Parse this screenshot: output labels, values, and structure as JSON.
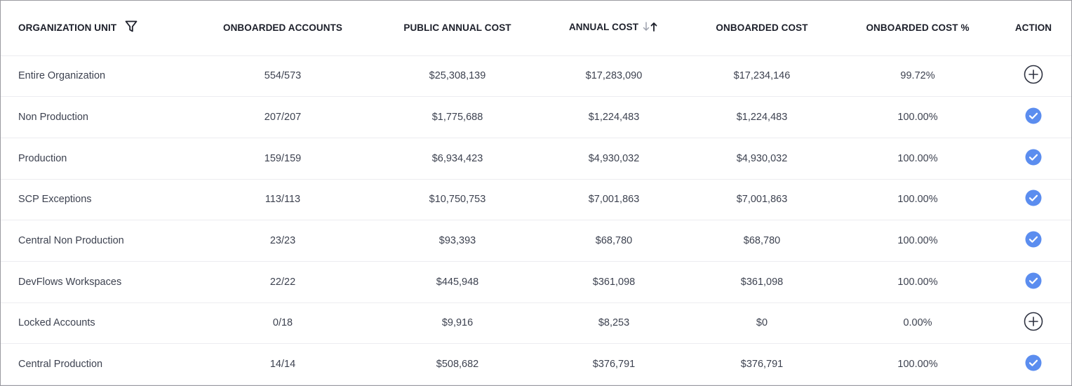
{
  "colors": {
    "check_fill": "#5b8def",
    "plus_stroke": "#2e3240",
    "header_text": "#1c1f2a",
    "cell_text": "#3d4250",
    "row_border": "#ececf0"
  },
  "table": {
    "headers": {
      "org_unit": "ORGANIZATION UNIT",
      "onboarded_accounts": "ONBOARDED ACCOUNTS",
      "public_annual_cost": "PUBLIC ANNUAL COST",
      "annual_cost": "ANNUAL COST",
      "onboarded_cost": "ONBOARDED COST",
      "onboarded_cost_pct": "ONBOARDED COST %",
      "action": "ACTION"
    },
    "header_icons": {
      "filter": "filter-icon",
      "sort": "sort-arrows-icon"
    },
    "rows": [
      {
        "org_unit": "Entire Organization",
        "onboarded_accounts": "554/573",
        "public_annual_cost": "$25,308,139",
        "annual_cost": "$17,283,090",
        "onboarded_cost": "$17,234,146",
        "onboarded_cost_pct": "99.72%",
        "action_icon": "plus-circle-icon"
      },
      {
        "org_unit": "Non Production",
        "onboarded_accounts": "207/207",
        "public_annual_cost": "$1,775,688",
        "annual_cost": "$1,224,483",
        "onboarded_cost": "$1,224,483",
        "onboarded_cost_pct": "100.00%",
        "action_icon": "check-circle-icon"
      },
      {
        "org_unit": "Production",
        "onboarded_accounts": "159/159",
        "public_annual_cost": "$6,934,423",
        "annual_cost": "$4,930,032",
        "onboarded_cost": "$4,930,032",
        "onboarded_cost_pct": "100.00%",
        "action_icon": "check-circle-icon"
      },
      {
        "org_unit": "SCP Exceptions",
        "onboarded_accounts": "113/113",
        "public_annual_cost": "$10,750,753",
        "annual_cost": "$7,001,863",
        "onboarded_cost": "$7,001,863",
        "onboarded_cost_pct": "100.00%",
        "action_icon": "check-circle-icon"
      },
      {
        "org_unit": "Central Non Production",
        "onboarded_accounts": "23/23",
        "public_annual_cost": "$93,393",
        "annual_cost": "$68,780",
        "onboarded_cost": "$68,780",
        "onboarded_cost_pct": "100.00%",
        "action_icon": "check-circle-icon"
      },
      {
        "org_unit": "DevFlows Workspaces",
        "onboarded_accounts": "22/22",
        "public_annual_cost": "$445,948",
        "annual_cost": "$361,098",
        "onboarded_cost": "$361,098",
        "onboarded_cost_pct": "100.00%",
        "action_icon": "check-circle-icon"
      },
      {
        "org_unit": "Locked Accounts",
        "onboarded_accounts": "0/18",
        "public_annual_cost": "$9,916",
        "annual_cost": "$8,253",
        "onboarded_cost": "$0",
        "onboarded_cost_pct": "0.00%",
        "action_icon": "plus-circle-icon"
      },
      {
        "org_unit": "Central Production",
        "onboarded_accounts": "14/14",
        "public_annual_cost": "$508,682",
        "annual_cost": "$376,791",
        "onboarded_cost": "$376,791",
        "onboarded_cost_pct": "100.00%",
        "action_icon": "check-circle-icon"
      }
    ]
  }
}
